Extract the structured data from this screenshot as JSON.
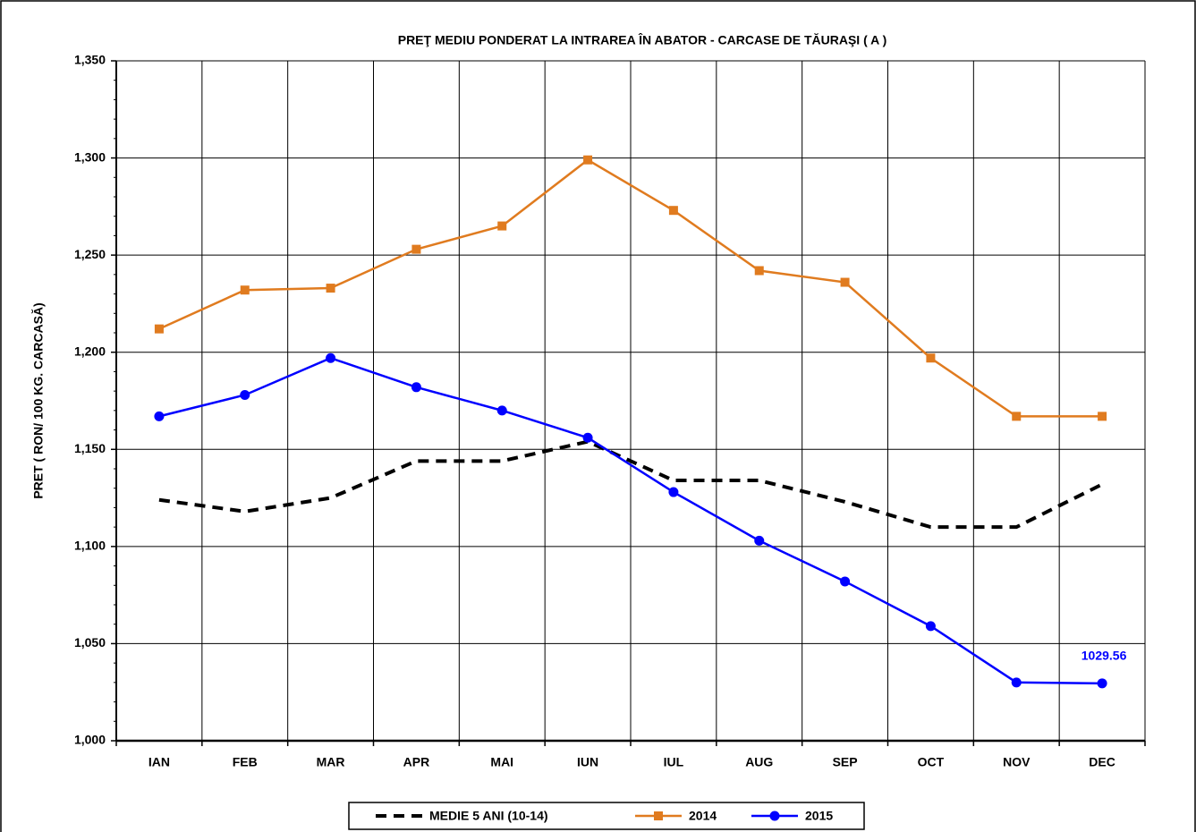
{
  "chart_data": {
    "type": "line",
    "title": "PREŢ MEDIU PONDERAT LA INTRAREA ÎN ABATOR - CARCASE DE TĂURAŞI ( A )",
    "y_label": "PRET ( RON/ 100 KG. CARCASĂ)",
    "categories": [
      "IAN",
      "FEB",
      "MAR",
      "APR",
      "MAI",
      "IUN",
      "IUL",
      "AUG",
      "SEP",
      "OCT",
      "NOV",
      "DEC"
    ],
    "series": [
      {
        "name": "MEDIE 5 ANI (10-14)",
        "color": "#000000",
        "dashed": true,
        "marker": "none",
        "values": [
          1124,
          1118,
          1125,
          1144,
          1144,
          1154,
          1134,
          1134,
          1123,
          1110,
          1110,
          1132
        ]
      },
      {
        "name": "2014",
        "color": "#e07b1f",
        "marker": "square",
        "values": [
          1212,
          1232,
          1233,
          1253,
          1265,
          1299,
          1273,
          1242,
          1236,
          1197,
          1167,
          1167
        ]
      },
      {
        "name": "2015",
        "color": "#0000ff",
        "marker": "circle",
        "label_last": true,
        "values": [
          1167,
          1178,
          1197,
          1182,
          1170,
          1156,
          1128,
          1103,
          1082,
          1059,
          1030,
          1029.56
        ]
      }
    ],
    "ylim": [
      1000,
      1350
    ],
    "yticks": [
      {
        "value": 1000,
        "label": "1,000"
      },
      {
        "value": 1050,
        "label": "1,050"
      },
      {
        "value": 1100,
        "label": "1,100"
      },
      {
        "value": 1150,
        "label": "1,150"
      },
      {
        "value": 1200,
        "label": "1,200"
      },
      {
        "value": 1250,
        "label": "1,250"
      },
      {
        "value": 1300,
        "label": "1,300"
      },
      {
        "value": 1350,
        "label": "1,350"
      }
    ],
    "grid": true,
    "legend": "bottom"
  }
}
